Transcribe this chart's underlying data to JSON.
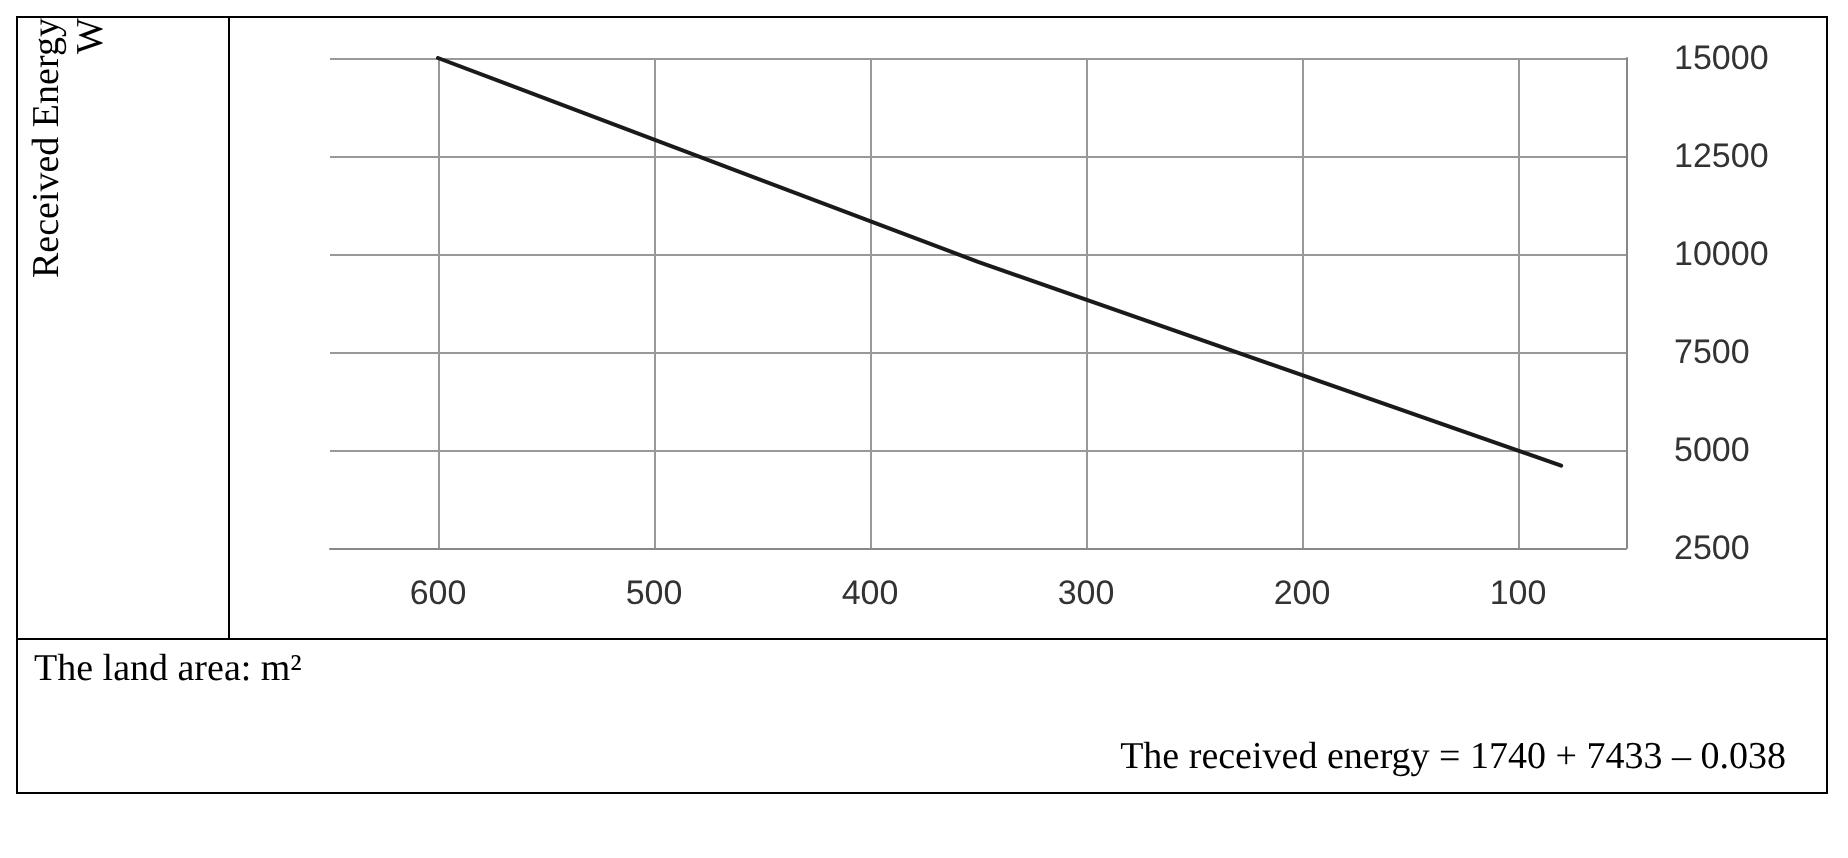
{
  "chart_data": {
    "type": "line",
    "xlabel": "The land area: m²",
    "x": [
      600,
      350,
      80
    ],
    "series": [
      {
        "color": "#1a1a1a",
        "values": [
          15000,
          9800,
          4600
        ]
      }
    ],
    "xlim": [
      650,
      50
    ],
    "xticks": [
      600,
      500,
      400,
      300,
      200,
      100
    ],
    "ylim": [
      2500,
      15000
    ],
    "yticks": [
      2500,
      5000,
      7500,
      10000,
      12500,
      15000
    ],
    "grid": true,
    "marker": "none",
    "line_style": "solid",
    "annotations": [
      "Received Energy W",
      "The received energy = 1740 + 7433 – 0.038"
    ]
  }
}
